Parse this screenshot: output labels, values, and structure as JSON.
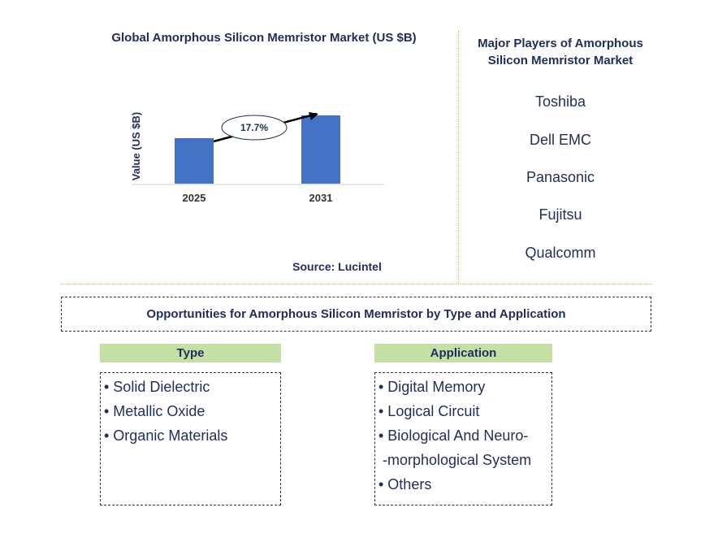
{
  "chart_data": {
    "type": "bar",
    "title": "Global Amorphous Silicon Memristor Market (US $B)",
    "categories": [
      "2025",
      "2031"
    ],
    "ylabel": "Value (US $B)",
    "cagr_label": "17.7%",
    "colors": {
      "bar": "#4472c4",
      "arrow": "#000000"
    }
  },
  "source": "Source: Lucintel",
  "players": {
    "title": "Major Players of Amorphous Silicon Memristor Market",
    "items": [
      "Toshiba",
      "Dell EMC",
      "Panasonic",
      "Fujitsu",
      "Qualcomm"
    ]
  },
  "opportunities": {
    "title": "Opportunities for Amorphous Silicon Memristor by Type and Application",
    "type": {
      "header": "Type",
      "items": [
        "• Solid Dielectric",
        "• Metallic Oxide",
        "• Organic Materials"
      ]
    },
    "application": {
      "header": "Application",
      "items": [
        "• Digital Memory",
        "• Logical Circuit",
        "• Biological And Neuro-",
        " -morphological System",
        "• Others"
      ]
    }
  },
  "colors": {
    "text": "#1f2d5a",
    "divider": "#e0b84a",
    "category_header": "#c5e0a5"
  }
}
